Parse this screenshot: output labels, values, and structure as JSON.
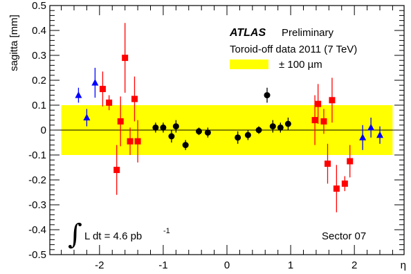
{
  "chart_data": {
    "type": "scatter",
    "xlabel": "η",
    "ylabel": "sagitta [mm]",
    "xlim": [
      -2.78,
      2.78
    ],
    "ylim": [
      -0.5,
      0.5
    ],
    "x_ticks": [
      -2,
      -1,
      0,
      1,
      2
    ],
    "x_tick_labels": [
      "-2",
      "-1",
      "0",
      "1",
      "2"
    ],
    "y_ticks": [
      -0.5,
      -0.4,
      -0.3,
      -0.2,
      -0.1,
      0,
      0.1,
      0.2,
      0.3,
      0.4,
      0.5
    ],
    "y_tick_labels": [
      "-0.5",
      "-0.4",
      "-0.3",
      "-0.2",
      "-0.1",
      "0",
      "0.1",
      "0.2",
      "0.3",
      "0.4",
      "0.5"
    ],
    "grid": false,
    "band": {
      "y_low": -0.1,
      "y_high": 0.1,
      "x_low": -2.6,
      "x_high": 2.6,
      "color": "#ffff00",
      "label": "± 100 µm"
    },
    "zero_line": 0,
    "annotations": {
      "atlas": "ATLAS",
      "preliminary": "Preliminary",
      "dataset": "Toroid-off data 2011 (7 TeV)",
      "lumi_prefix": "L dt = 4.6 pb",
      "lumi_exp": "-1",
      "sector": "Sector 07"
    },
    "legend_position": "top-right",
    "series": [
      {
        "marker": "triangle",
        "color": "#0000ff",
        "points": [
          {
            "x": -2.33,
            "y": 0.14,
            "err": 0.03
          },
          {
            "x": -2.2,
            "y": 0.05,
            "err": 0.035
          },
          {
            "x": -2.07,
            "y": 0.19,
            "err": 0.06
          },
          {
            "x": 2.13,
            "y": -0.03,
            "err": 0.05
          },
          {
            "x": 2.26,
            "y": 0.01,
            "err": 0.04
          },
          {
            "x": 2.4,
            "y": -0.02,
            "err": 0.035
          }
        ]
      },
      {
        "marker": "square",
        "color": "#ff0000",
        "points": [
          {
            "x": -1.95,
            "y": 0.165,
            "err": 0.07
          },
          {
            "x": -1.85,
            "y": 0.11,
            "err": 0.03
          },
          {
            "x": -1.73,
            "y": -0.16,
            "err": 0.1
          },
          {
            "x": -1.67,
            "y": 0.035,
            "err": 0.1
          },
          {
            "x": -1.6,
            "y": 0.29,
            "err": 0.14
          },
          {
            "x": -1.52,
            "y": -0.045,
            "err": 0.055
          },
          {
            "x": -1.45,
            "y": 0.125,
            "err": 0.09
          },
          {
            "x": -1.4,
            "y": -0.045,
            "err": 0.085
          },
          {
            "x": 1.38,
            "y": 0.04,
            "err": 0.1
          },
          {
            "x": 1.43,
            "y": 0.105,
            "err": 0.08
          },
          {
            "x": 1.52,
            "y": 0.035,
            "err": 0.05
          },
          {
            "x": 1.58,
            "y": -0.135,
            "err": 0.08
          },
          {
            "x": 1.65,
            "y": 0.12,
            "err": 0.09
          },
          {
            "x": 1.72,
            "y": -0.235,
            "err": 0.095
          },
          {
            "x": 1.85,
            "y": -0.215,
            "err": 0.03
          },
          {
            "x": 1.93,
            "y": -0.125,
            "err": 0.065
          }
        ]
      },
      {
        "marker": "circle",
        "color": "#000000",
        "points": [
          {
            "x": -1.12,
            "y": 0.01,
            "err": 0.02
          },
          {
            "x": -1.0,
            "y": 0.01,
            "err": 0.02
          },
          {
            "x": -0.87,
            "y": -0.025,
            "err": 0.025
          },
          {
            "x": -0.8,
            "y": 0.015,
            "err": 0.025
          },
          {
            "x": -0.65,
            "y": -0.06,
            "err": 0.02
          },
          {
            "x": -0.44,
            "y": -0.005,
            "err": 0.015
          },
          {
            "x": -0.3,
            "y": -0.01,
            "err": 0.02
          },
          {
            "x": 0.17,
            "y": -0.03,
            "err": 0.025
          },
          {
            "x": 0.33,
            "y": -0.02,
            "err": 0.02
          },
          {
            "x": 0.5,
            "y": 0.0,
            "err": 0.015
          },
          {
            "x": 0.63,
            "y": 0.14,
            "err": 0.03
          },
          {
            "x": 0.72,
            "y": 0.015,
            "err": 0.025
          },
          {
            "x": 0.84,
            "y": 0.01,
            "err": 0.02
          },
          {
            "x": 0.96,
            "y": 0.025,
            "err": 0.025
          }
        ]
      }
    ]
  }
}
